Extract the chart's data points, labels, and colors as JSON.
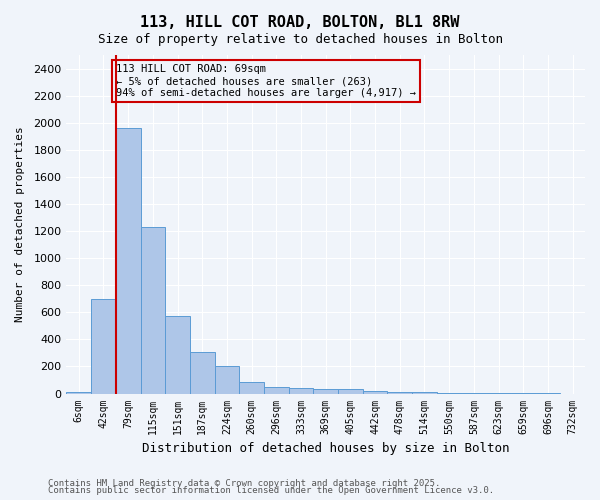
{
  "title": "113, HILL COT ROAD, BOLTON, BL1 8RW",
  "subtitle": "Size of property relative to detached houses in Bolton",
  "xlabel": "Distribution of detached houses by size in Bolton",
  "ylabel": "Number of detached properties",
  "categories": [
    "6sqm",
    "42sqm",
    "79sqm",
    "115sqm",
    "151sqm",
    "187sqm",
    "224sqm",
    "260sqm",
    "296sqm",
    "333sqm",
    "369sqm",
    "405sqm",
    "442sqm",
    "478sqm",
    "514sqm",
    "550sqm",
    "587sqm",
    "623sqm",
    "659sqm",
    "696sqm",
    "732sqm"
  ],
  "values": [
    15,
    700,
    1960,
    1230,
    575,
    305,
    200,
    85,
    45,
    40,
    35,
    35,
    18,
    15,
    10,
    5,
    3,
    2,
    2,
    1,
    0
  ],
  "bar_color": "#aec6e8",
  "bar_edge_color": "#5b9bd5",
  "ylim": [
    0,
    2500
  ],
  "yticks": [
    0,
    200,
    400,
    600,
    800,
    1000,
    1200,
    1400,
    1600,
    1800,
    2000,
    2200,
    2400
  ],
  "vline_x": 1,
  "vline_color": "#cc0000",
  "annotation_text": "113 HILL COT ROAD: 69sqm\n← 5% of detached houses are smaller (263)\n94% of semi-detached houses are larger (4,917) →",
  "annotation_box_color": "#cc0000",
  "bg_color": "#f0f4fa",
  "footer1": "Contains HM Land Registry data © Crown copyright and database right 2025.",
  "footer2": "Contains public sector information licensed under the Open Government Licence v3.0."
}
